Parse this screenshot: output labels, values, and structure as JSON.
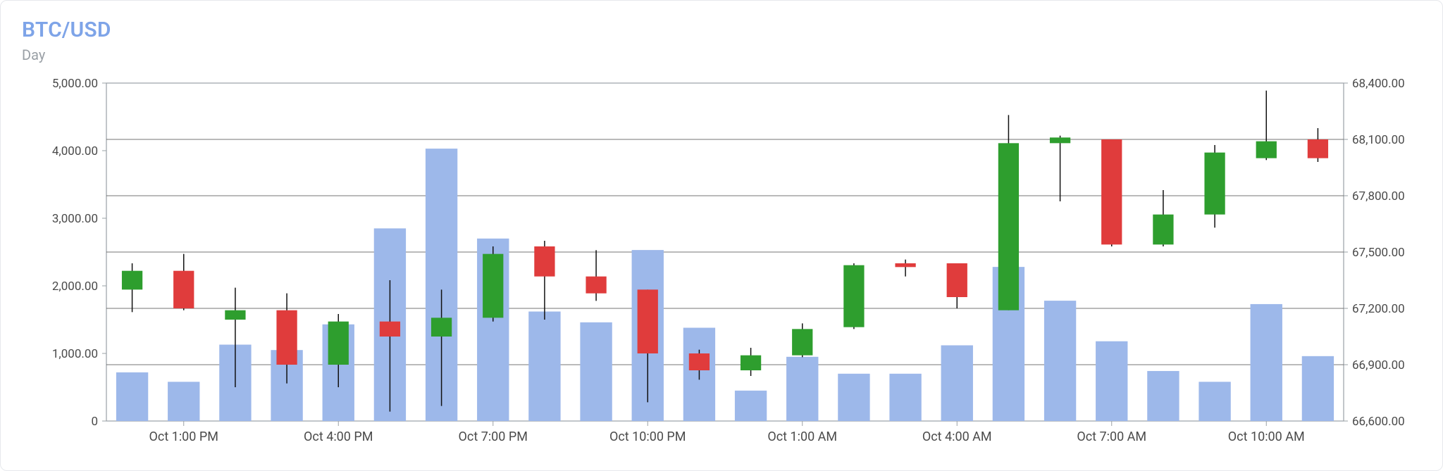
{
  "header": {
    "title": "BTC/USD",
    "title_color": "#7ea4e8",
    "subtitle": "Day",
    "subtitle_color": "#9aa0a6"
  },
  "chart": {
    "type": "candlestick_with_volume_bars",
    "background_color": "#ffffff",
    "border_color": "#9aa0a6",
    "grid_color": "#5c5c5c",
    "grid_stroke_width": 1,
    "label_color": "#4a4a4a",
    "label_fontsize": 17,
    "x_label_fontsize": 18,
    "volume_axis": {
      "min": 0,
      "max": 5000,
      "ticks": [
        0,
        1000,
        2000,
        3000,
        4000,
        5000
      ],
      "tick_labels": [
        "0",
        "1,000.00",
        "2,000.00",
        "3,000.00",
        "4,000.00",
        "5,000.00"
      ]
    },
    "price_axis": {
      "min": 66600,
      "max": 68400,
      "ticks": [
        66600,
        66900,
        67200,
        67500,
        67800,
        68100,
        68400
      ],
      "tick_labels": [
        "66,600.00",
        "66,900.00",
        "67,200.00",
        "67,500.00",
        "67,800.00",
        "68,100.00",
        "68,400.00"
      ]
    },
    "x_ticks": [
      {
        "index": 1,
        "label": "Oct 1:00 PM"
      },
      {
        "index": 4,
        "label": "Oct 4:00 PM"
      },
      {
        "index": 7,
        "label": "Oct 7:00 PM"
      },
      {
        "index": 10,
        "label": "Oct 10:00 PM"
      },
      {
        "index": 13,
        "label": "Oct 1:00 AM"
      },
      {
        "index": 16,
        "label": "Oct 4:00 AM"
      },
      {
        "index": 19,
        "label": "Oct 7:00 AM"
      },
      {
        "index": 22,
        "label": "Oct 10:00 AM"
      }
    ],
    "bar_color": "#9db8ea",
    "bar_width_ratio": 0.62,
    "candle_up_color": "#2e9e2e",
    "candle_down_color": "#e03c3c",
    "candle_wick_color": "#111111",
    "candle_width_ratio": 0.4,
    "candle_wick_width": 1.5,
    "series": [
      {
        "open": 67300,
        "high": 67440,
        "low": 67180,
        "close": 67400,
        "volume": 720
      },
      {
        "open": 67400,
        "high": 67490,
        "low": 67190,
        "close": 67200,
        "volume": 580
      },
      {
        "open": 67140,
        "high": 67310,
        "low": 66780,
        "close": 67190,
        "volume": 1130
      },
      {
        "open": 67190,
        "high": 67280,
        "low": 66800,
        "close": 66900,
        "volume": 1050
      },
      {
        "open": 66900,
        "high": 67170,
        "low": 66780,
        "close": 67130,
        "volume": 1430
      },
      {
        "open": 67130,
        "high": 67350,
        "low": 66650,
        "close": 67050,
        "volume": 2850
      },
      {
        "open": 67050,
        "high": 67300,
        "low": 66680,
        "close": 67150,
        "volume": 4030
      },
      {
        "open": 67150,
        "high": 67530,
        "low": 67130,
        "close": 67490,
        "volume": 2700
      },
      {
        "open": 67530,
        "high": 67560,
        "low": 67140,
        "close": 67370,
        "volume": 1620
      },
      {
        "open": 67370,
        "high": 67510,
        "low": 67240,
        "close": 67280,
        "volume": 1460
      },
      {
        "open": 67300,
        "high": 67300,
        "low": 66700,
        "close": 66960,
        "volume": 2530
      },
      {
        "open": 66960,
        "high": 66980,
        "low": 66820,
        "close": 66870,
        "volume": 1380
      },
      {
        "open": 66870,
        "high": 66990,
        "low": 66840,
        "close": 66950,
        "volume": 450
      },
      {
        "open": 66950,
        "high": 67120,
        "low": 66940,
        "close": 67090,
        "volume": 950
      },
      {
        "open": 67100,
        "high": 67440,
        "low": 67090,
        "close": 67430,
        "volume": 700
      },
      {
        "open": 67440,
        "high": 67460,
        "low": 67370,
        "close": 67420,
        "volume": 700
      },
      {
        "open": 67440,
        "high": 67440,
        "low": 67200,
        "close": 67260,
        "volume": 1120
      },
      {
        "open": 67190,
        "high": 68230,
        "low": 67190,
        "close": 68080,
        "volume": 2280
      },
      {
        "open": 68080,
        "high": 68120,
        "low": 67770,
        "close": 68110,
        "volume": 1780
      },
      {
        "open": 68100,
        "high": 68100,
        "low": 67530,
        "close": 67540,
        "volume": 1180
      },
      {
        "open": 67540,
        "high": 67830,
        "low": 67530,
        "close": 67700,
        "volume": 740
      },
      {
        "open": 67700,
        "high": 68070,
        "low": 67630,
        "close": 68030,
        "volume": 580
      },
      {
        "open": 68000,
        "high": 68360,
        "low": 67990,
        "close": 68090,
        "volume": 1730
      },
      {
        "open": 68100,
        "high": 68160,
        "low": 67980,
        "close": 68000,
        "volume": 960
      }
    ]
  }
}
